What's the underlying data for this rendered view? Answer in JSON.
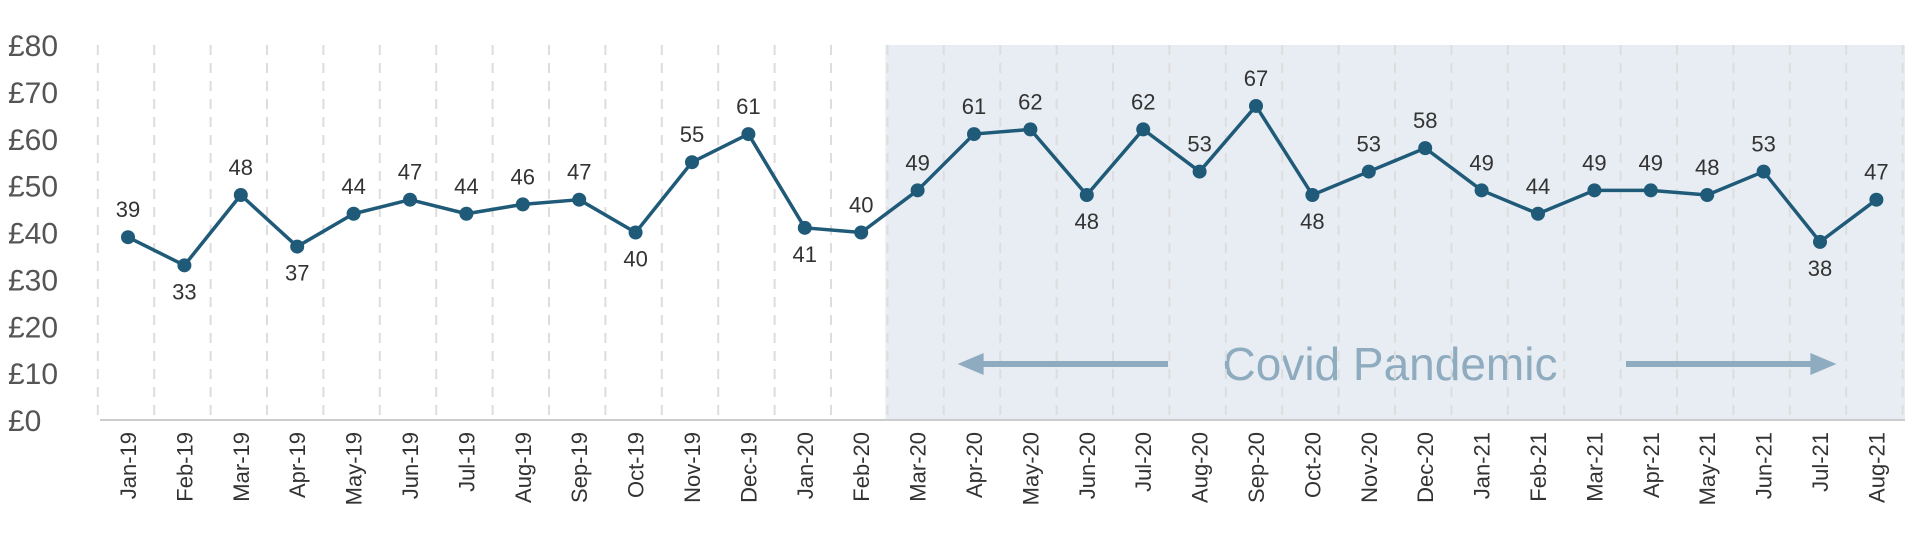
{
  "chart_data": {
    "type": "line",
    "title": "",
    "xlabel": "",
    "ylabel": "",
    "y_ticks": [
      "£0",
      "£10",
      "£20",
      "£30",
      "£40",
      "£50",
      "£60",
      "£70",
      "£80"
    ],
    "ylim": [
      0,
      80
    ],
    "grid": "vertical dashed",
    "categories": [
      "Jan-19",
      "Feb-19",
      "Mar-19",
      "Apr-19",
      "May-19",
      "Jun-19",
      "Jul-19",
      "Aug-19",
      "Sep-19",
      "Oct-19",
      "Nov-19",
      "Dec-19",
      "Jan-20",
      "Feb-20",
      "Mar-20",
      "Apr-20",
      "May-20",
      "Jun-20",
      "Jul-20",
      "Aug-20",
      "Sep-20",
      "Oct-20",
      "Nov-20",
      "Dec-20",
      "Jan-21",
      "Feb-21",
      "Mar-21",
      "Apr-21",
      "May-21",
      "Jun-21",
      "Jul-21",
      "Aug-21"
    ],
    "values": [
      39,
      33,
      48,
      37,
      44,
      47,
      44,
      46,
      47,
      40,
      55,
      61,
      41,
      40,
      49,
      61,
      62,
      48,
      62,
      53,
      67,
      48,
      53,
      58,
      49,
      44,
      49,
      49,
      48,
      53,
      38,
      47
    ],
    "label_below": [
      false,
      true,
      false,
      true,
      false,
      false,
      false,
      false,
      false,
      true,
      false,
      false,
      true,
      false,
      false,
      false,
      false,
      true,
      false,
      false,
      false,
      true,
      false,
      false,
      false,
      false,
      false,
      false,
      false,
      false,
      true,
      false
    ],
    "highlight_band": {
      "label": "Covid Pandemic",
      "start": "Mar-20",
      "end": "Aug-21"
    },
    "colors": {
      "line": "#1f5a78",
      "band_fill": "#e7edf2",
      "band_text": "#8eabbf",
      "arrow": "#8eabbf",
      "grid": "#dddddd",
      "axis": "#cccccc"
    }
  }
}
